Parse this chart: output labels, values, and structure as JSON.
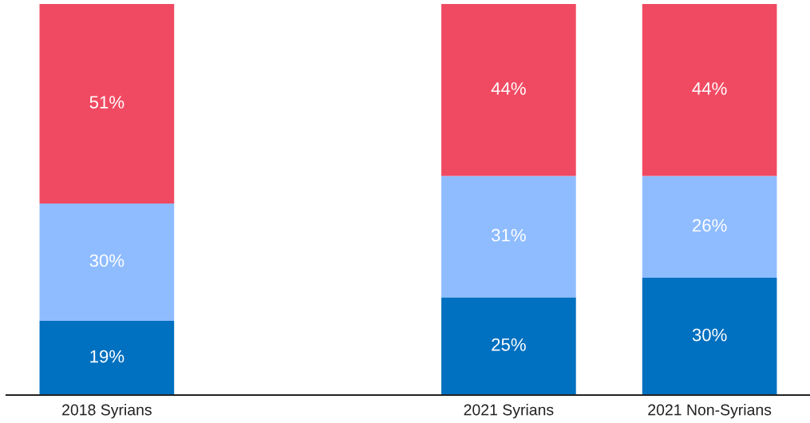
{
  "chart_data": {
    "type": "bar",
    "stacked": true,
    "tick_labels": "x",
    "categories": [
      "2018 Syrians",
      null,
      "2021 Syrians",
      "2021 Non-Syrians"
    ],
    "series": [
      {
        "color": "#0070c0",
        "values": [
          19,
          null,
          25,
          30
        ],
        "value_labels": [
          "19%",
          null,
          "25%",
          "30%"
        ]
      },
      {
        "color": "#8fbcff",
        "values": [
          30,
          null,
          31,
          26
        ],
        "value_labels": [
          "30%",
          null,
          "31%",
          "26%"
        ]
      },
      {
        "color": "#f04a62",
        "values": [
          51,
          null,
          44,
          44
        ],
        "value_labels": [
          "51%",
          null,
          "44%",
          "44%"
        ]
      }
    ]
  }
}
